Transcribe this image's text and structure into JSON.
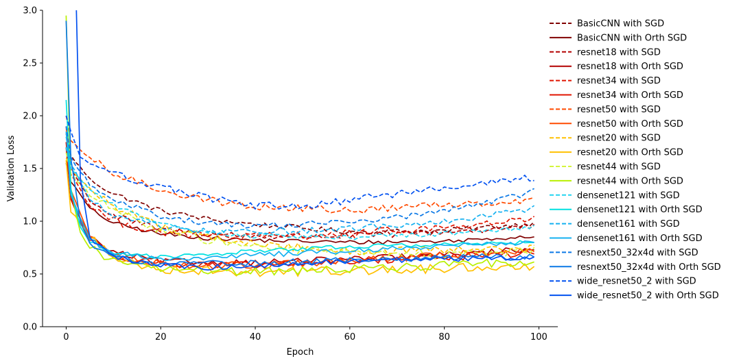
{
  "chart_data": {
    "type": "line",
    "title": "",
    "xlabel": "Epoch",
    "ylabel": "Validation Loss",
    "xlim": [
      -5,
      104
    ],
    "ylim": [
      0,
      3.0
    ],
    "xticks": [
      0,
      20,
      40,
      60,
      80,
      100
    ],
    "yticks": [
      0.0,
      0.5,
      1.0,
      1.5,
      2.0,
      2.5,
      3.0
    ],
    "grid": false,
    "legend_position": "outside-right",
    "x": "epochs 0-99",
    "series": [
      {
        "name": "BasicCNN with SGD",
        "color": "#800000",
        "dash": "dashed",
        "start": 1.83,
        "knots": [
          [
            1,
            1.62
          ],
          [
            5,
            1.4
          ],
          [
            10,
            1.26
          ],
          [
            20,
            1.1
          ],
          [
            30,
            1.02
          ],
          [
            40,
            0.97
          ],
          [
            60,
            0.9
          ],
          [
            80,
            0.91
          ],
          [
            99,
            0.98
          ]
        ],
        "noise": 0.025
      },
      {
        "name": "BasicCNN with Orth SGD",
        "color": "#800000",
        "dash": "solid",
        "start": 1.55,
        "knots": [
          [
            1,
            1.38
          ],
          [
            5,
            1.12
          ],
          [
            10,
            0.98
          ],
          [
            20,
            0.88
          ],
          [
            30,
            0.84
          ],
          [
            40,
            0.82
          ],
          [
            60,
            0.8
          ],
          [
            80,
            0.81
          ],
          [
            99,
            0.86
          ]
        ],
        "noise": 0.02
      },
      {
        "name": "resnet18 with SGD",
        "color": "#b30000",
        "dash": "dashed",
        "start": 1.75,
        "knots": [
          [
            1,
            1.5
          ],
          [
            5,
            1.2
          ],
          [
            10,
            1.05
          ],
          [
            20,
            0.92
          ],
          [
            30,
            0.88
          ],
          [
            40,
            0.86
          ],
          [
            60,
            0.86
          ],
          [
            80,
            0.9
          ],
          [
            99,
            0.95
          ]
        ],
        "noise": 0.035
      },
      {
        "name": "resnet18 with Orth SGD",
        "color": "#b30000",
        "dash": "solid",
        "start": 1.7,
        "knots": [
          [
            1,
            1.2
          ],
          [
            5,
            0.85
          ],
          [
            10,
            0.7
          ],
          [
            20,
            0.62
          ],
          [
            30,
            0.61
          ],
          [
            40,
            0.61
          ],
          [
            60,
            0.64
          ],
          [
            80,
            0.68
          ],
          [
            99,
            0.74
          ]
        ],
        "noise": 0.03
      },
      {
        "name": "resnet34 with SGD",
        "color": "#e01400",
        "dash": "dashed",
        "start": 1.7,
        "knots": [
          [
            1,
            1.45
          ],
          [
            5,
            1.15
          ],
          [
            10,
            1.0
          ],
          [
            20,
            0.9
          ],
          [
            30,
            0.86
          ],
          [
            40,
            0.85
          ],
          [
            60,
            0.88
          ],
          [
            80,
            0.94
          ],
          [
            99,
            1.02
          ]
        ],
        "noise": 0.04
      },
      {
        "name": "resnet34 with Orth SGD",
        "color": "#e01400",
        "dash": "solid",
        "start": 1.75,
        "knots": [
          [
            1,
            1.22
          ],
          [
            5,
            0.82
          ],
          [
            10,
            0.68
          ],
          [
            20,
            0.6
          ],
          [
            30,
            0.58
          ],
          [
            40,
            0.58
          ],
          [
            60,
            0.62
          ],
          [
            80,
            0.66
          ],
          [
            99,
            0.7
          ]
        ],
        "noise": 0.035
      },
      {
        "name": "resnet50 with SGD",
        "color": "#ff4a00",
        "dash": "dashed",
        "start": 2.0,
        "knots": [
          [
            1,
            1.75
          ],
          [
            5,
            1.6
          ],
          [
            10,
            1.45
          ],
          [
            20,
            1.3
          ],
          [
            30,
            1.2
          ],
          [
            40,
            1.14
          ],
          [
            60,
            1.1
          ],
          [
            80,
            1.16
          ],
          [
            99,
            1.2
          ]
        ],
        "noise": 0.035
      },
      {
        "name": "resnet50 with Orth SGD",
        "color": "#ff4a00",
        "dash": "solid",
        "start": 1.9,
        "knots": [
          [
            1,
            1.3
          ],
          [
            5,
            0.85
          ],
          [
            10,
            0.68
          ],
          [
            20,
            0.6
          ],
          [
            30,
            0.58
          ],
          [
            40,
            0.58
          ],
          [
            60,
            0.62
          ],
          [
            80,
            0.68
          ],
          [
            99,
            0.72
          ]
        ],
        "noise": 0.035
      },
      {
        "name": "resnet20 with SGD",
        "color": "#ffc000",
        "dash": "dashed",
        "start": 1.6,
        "knots": [
          [
            1,
            1.5
          ],
          [
            5,
            1.3
          ],
          [
            10,
            1.15
          ],
          [
            20,
            0.95
          ],
          [
            30,
            0.85
          ],
          [
            40,
            0.78
          ],
          [
            60,
            0.72
          ],
          [
            80,
            0.72
          ],
          [
            99,
            0.74
          ]
        ],
        "noise": 0.04
      },
      {
        "name": "resnet20 with Orth SGD",
        "color": "#ffc000",
        "dash": "solid",
        "start": 1.58,
        "knots": [
          [
            1,
            1.1
          ],
          [
            5,
            0.85
          ],
          [
            10,
            0.65
          ],
          [
            20,
            0.55
          ],
          [
            30,
            0.53
          ],
          [
            40,
            0.52
          ],
          [
            60,
            0.53
          ],
          [
            80,
            0.55
          ],
          [
            99,
            0.58
          ]
        ],
        "noise": 0.045
      },
      {
        "name": "resnet44 with SGD",
        "color": "#d4f53c",
        "dash": "dashed",
        "start": 1.65,
        "knots": [
          [
            1,
            1.45
          ],
          [
            5,
            1.25
          ],
          [
            10,
            1.1
          ],
          [
            20,
            0.92
          ],
          [
            30,
            0.82
          ],
          [
            40,
            0.76
          ],
          [
            60,
            0.7
          ],
          [
            80,
            0.68
          ],
          [
            99,
            0.72
          ]
        ],
        "noise": 0.04
      },
      {
        "name": "resnet44 with Orth SGD",
        "color": "#b8f000",
        "dash": "solid",
        "start": 2.95,
        "knots": [
          [
            1,
            1.3
          ],
          [
            3,
            0.9
          ],
          [
            5,
            0.75
          ],
          [
            10,
            0.62
          ],
          [
            20,
            0.55
          ],
          [
            30,
            0.53
          ],
          [
            40,
            0.52
          ],
          [
            60,
            0.55
          ],
          [
            80,
            0.58
          ],
          [
            99,
            0.62
          ]
        ],
        "noise": 0.04
      },
      {
        "name": "densenet121 with SGD",
        "color": "#22d4f0",
        "dash": "dashed",
        "start": 1.7,
        "knots": [
          [
            1,
            1.5
          ],
          [
            5,
            1.3
          ],
          [
            10,
            1.15
          ],
          [
            20,
            0.98
          ],
          [
            30,
            0.9
          ],
          [
            40,
            0.86
          ],
          [
            60,
            0.85
          ],
          [
            80,
            0.88
          ],
          [
            99,
            0.94
          ]
        ],
        "noise": 0.025
      },
      {
        "name": "densenet121 with Orth SGD",
        "color": "#00e0e0",
        "dash": "solid",
        "start": 2.15,
        "knots": [
          [
            1,
            1.3
          ],
          [
            3,
            0.95
          ],
          [
            5,
            0.8
          ],
          [
            10,
            0.7
          ],
          [
            20,
            0.66
          ],
          [
            30,
            0.68
          ],
          [
            40,
            0.72
          ],
          [
            60,
            0.76
          ],
          [
            80,
            0.78
          ],
          [
            99,
            0.8
          ]
        ],
        "noise": 0.02
      },
      {
        "name": "densenet161 with SGD",
        "color": "#14b0f0",
        "dash": "dashed",
        "start": 1.8,
        "knots": [
          [
            1,
            1.55
          ],
          [
            5,
            1.2
          ],
          [
            10,
            1.05
          ],
          [
            20,
            0.95
          ],
          [
            30,
            0.9
          ],
          [
            40,
            0.9
          ],
          [
            60,
            0.93
          ],
          [
            80,
            1.0
          ],
          [
            99,
            1.12
          ]
        ],
        "noise": 0.03
      },
      {
        "name": "densenet161 with Orth SGD",
        "color": "#14b0f0",
        "dash": "solid",
        "start": 1.85,
        "knots": [
          [
            1,
            1.25
          ],
          [
            5,
            0.82
          ],
          [
            10,
            0.7
          ],
          [
            20,
            0.64
          ],
          [
            30,
            0.65
          ],
          [
            40,
            0.68
          ],
          [
            60,
            0.72
          ],
          [
            80,
            0.76
          ],
          [
            99,
            0.8
          ]
        ],
        "noise": 0.025
      },
      {
        "name": "resnext50_32x4d with SGD",
        "color": "#0a78e6",
        "dash": "dashed",
        "start": 1.9,
        "knots": [
          [
            1,
            1.6
          ],
          [
            5,
            1.35
          ],
          [
            10,
            1.2
          ],
          [
            20,
            1.05
          ],
          [
            30,
            0.98
          ],
          [
            40,
            0.96
          ],
          [
            60,
            0.98
          ],
          [
            80,
            1.1
          ],
          [
            99,
            1.28
          ]
        ],
        "noise": 0.03
      },
      {
        "name": "resnext50_32x4d with Orth SGD",
        "color": "#0a78e6",
        "dash": "solid",
        "start": 2.9,
        "knots": [
          [
            1,
            1.6
          ],
          [
            3,
            1.0
          ],
          [
            5,
            0.8
          ],
          [
            10,
            0.66
          ],
          [
            20,
            0.6
          ],
          [
            30,
            0.6
          ],
          [
            40,
            0.6
          ],
          [
            60,
            0.63
          ],
          [
            80,
            0.66
          ],
          [
            99,
            0.66
          ]
        ],
        "noise": 0.03
      },
      {
        "name": "wide_resnet50_2 with SGD",
        "color": "#0050f0",
        "dash": "dashed",
        "start": 2.0,
        "knots": [
          [
            1,
            1.85
          ],
          [
            3,
            1.62
          ],
          [
            5,
            1.55
          ],
          [
            10,
            1.45
          ],
          [
            20,
            1.32
          ],
          [
            30,
            1.22
          ],
          [
            40,
            1.15
          ],
          [
            50,
            1.14
          ],
          [
            60,
            1.2
          ],
          [
            80,
            1.32
          ],
          [
            99,
            1.42
          ]
        ],
        "noise": 0.035
      },
      {
        "name": "wide_resnet50_2 with Orth SGD",
        "color": "#0050f0",
        "dash": "solid",
        "start": 3.6,
        "knots": [
          [
            1,
            3.4
          ],
          [
            2,
            3.3
          ],
          [
            3,
            1.4
          ],
          [
            5,
            0.85
          ],
          [
            10,
            0.66
          ],
          [
            20,
            0.58
          ],
          [
            30,
            0.56
          ],
          [
            40,
            0.58
          ],
          [
            60,
            0.62
          ],
          [
            80,
            0.64
          ],
          [
            99,
            0.66
          ]
        ],
        "noise": 0.025
      }
    ]
  }
}
